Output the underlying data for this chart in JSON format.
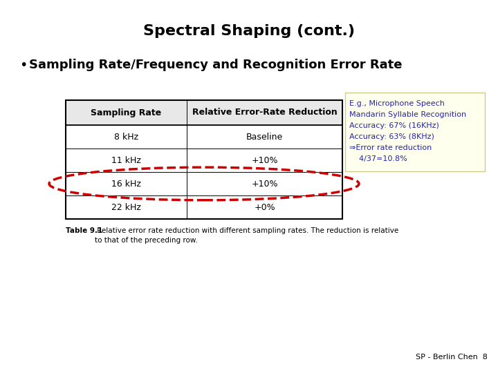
{
  "title": "Spectral Shaping (cont.)",
  "bullet": "Sampling Rate/Frequency and Recognition Error Rate",
  "table_headers": [
    "Sampling Rate",
    "Relative Error-Rate Reduction"
  ],
  "table_rows": [
    [
      "8 kHz",
      "Baseline"
    ],
    [
      "11 kHz",
      "+10%"
    ],
    [
      "16 kHz",
      "+10%"
    ],
    [
      "22 kHz",
      "+0%"
    ]
  ],
  "highlight_row": 2,
  "note_lines": [
    "E.g., Microphone Speech",
    "Mandarin Syllable Recognition",
    "Accuracy: 67% (16KHz)",
    "Accuracy: 63% (8KHz)",
    "⇒Error rate reduction",
    "    4/37=10.8%"
  ],
  "caption_bold": "Table 9.1",
  "caption_rest": " Relative error rate reduction with different sampling rates. The reduction is relative\nto that of the preceding row.",
  "footer": "SP - Berlin Chen  8",
  "bg_color": "#ffffff",
  "note_bg_color": "#ffffee",
  "note_border_color": "#cccc88",
  "note_text_color": "#2222aa",
  "table_header_color": "#e8e8e8",
  "ellipse_color": "#cc0000",
  "title_fontsize": 16,
  "bullet_fontsize": 13,
  "table_header_fontsize": 9,
  "table_fontsize": 9,
  "note_fontsize": 8,
  "caption_fontsize": 7.5,
  "footer_fontsize": 8
}
